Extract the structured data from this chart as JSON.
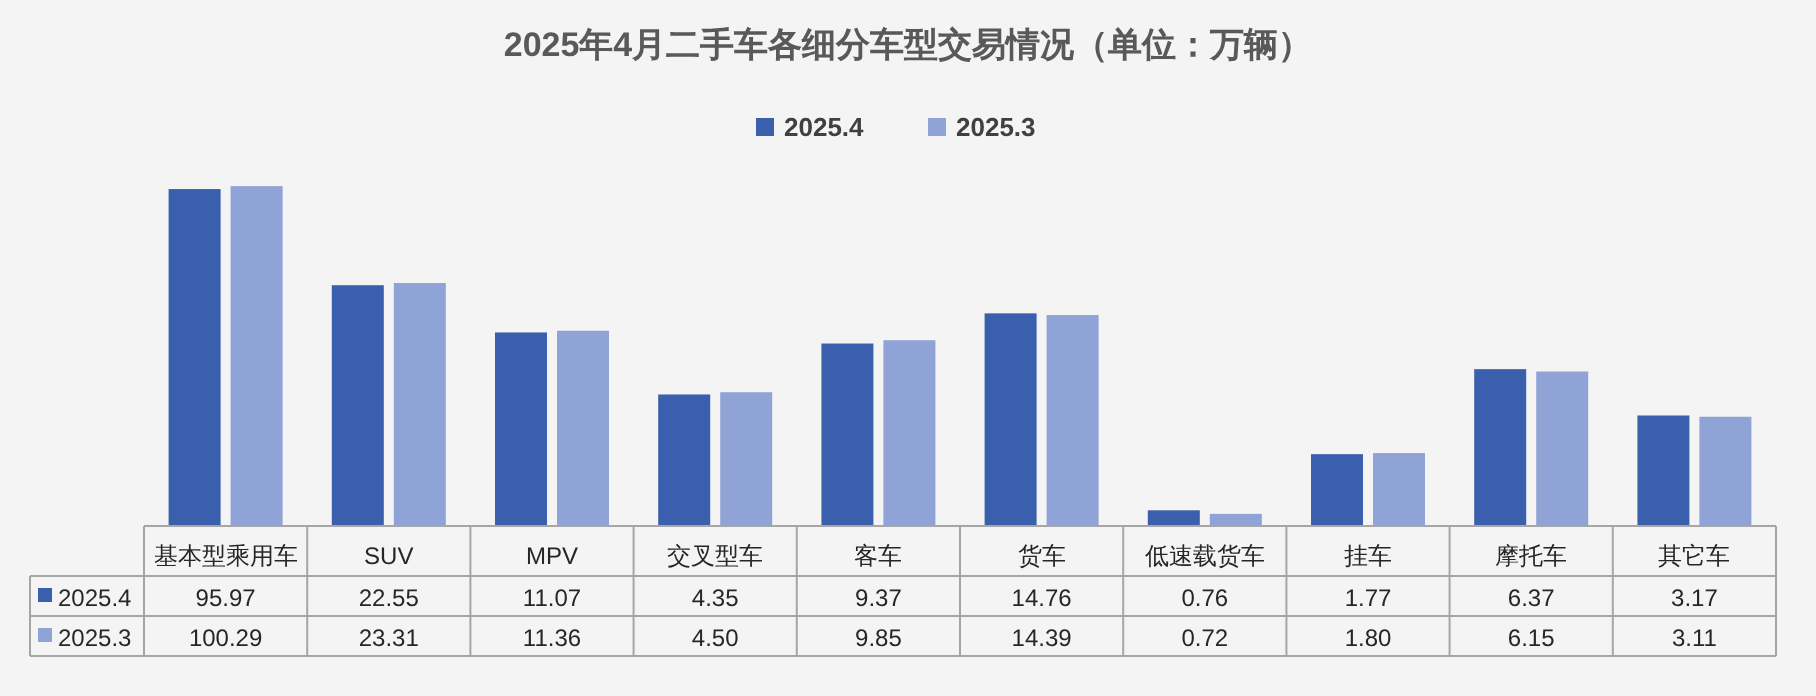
{
  "chart_data": {
    "type": "bar",
    "title": "2025年4月二手车各细分车型交易情况（单位：万辆）",
    "categories": [
      "基本型乘用车",
      "SUV",
      "MPV",
      "交叉型车",
      "客车",
      "货车",
      "低速载货车",
      "挂车",
      "摩托车",
      "其它车"
    ],
    "series": [
      {
        "name": "2025.4",
        "color": "#3a5fad",
        "values": [
          95.97,
          22.55,
          11.07,
          4.35,
          9.37,
          14.76,
          0.76,
          1.77,
          6.37,
          3.17
        ],
        "value_labels": [
          "95.97",
          "22.55",
          "11.07",
          "4.35",
          "9.37",
          "14.76",
          "0.76",
          "1.77",
          "6.37",
          "3.17"
        ]
      },
      {
        "name": "2025.3",
        "color": "#8fa3d6",
        "values": [
          100.29,
          23.31,
          11.36,
          4.5,
          9.85,
          14.39,
          0.72,
          1.8,
          6.15,
          3.11
        ],
        "value_labels": [
          "100.29",
          "23.31",
          "11.36",
          "4.50",
          "9.85",
          "14.39",
          "0.72",
          "1.80",
          "6.15",
          "3.11"
        ]
      }
    ],
    "log": true,
    "ylim": [
      0.6,
      110
    ],
    "tick_labels": "x",
    "legend": "top"
  }
}
